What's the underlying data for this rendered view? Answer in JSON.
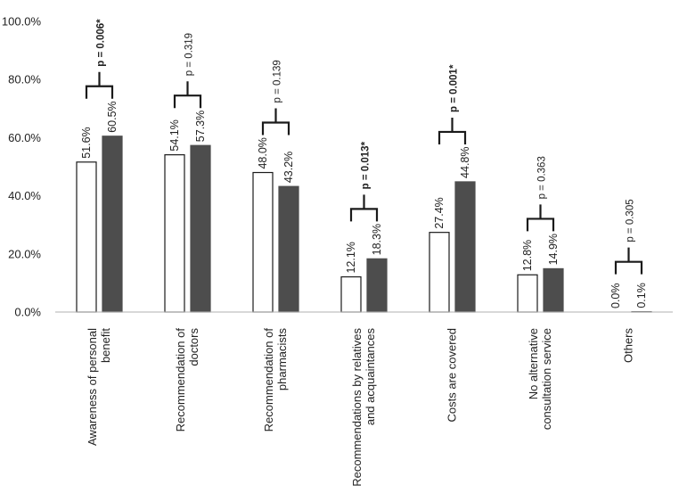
{
  "chart_data": {
    "type": "bar",
    "title": "",
    "xlabel": "",
    "ylabel": "",
    "ylim": [
      0,
      100
    ],
    "y_ticks": [
      0,
      20,
      40,
      60,
      80,
      100
    ],
    "y_tick_labels": [
      "0.0%",
      "20.0%",
      "40.0%",
      "60.0%",
      "80.0%",
      "100.0%"
    ],
    "grid": false,
    "legend": "none",
    "categories": [
      [
        "Awareness of personal",
        "benefit"
      ],
      [
        "Recommendation of",
        "doctors"
      ],
      [
        "Recommendation of",
        "pharmacists"
      ],
      [
        "Recommendations by relatives",
        "and acquaintances"
      ],
      [
        "Costs are covered"
      ],
      [
        "No alternative",
        "consultation service"
      ],
      [
        "Others"
      ]
    ],
    "series": [
      {
        "values": [
          51.6,
          54.1,
          48.0,
          12.1,
          27.4,
          12.8,
          0.0
        ],
        "labels": [
          "51.6%",
          "54.1%",
          "48.0%",
          "12.1%",
          "27.4%",
          "12.8%",
          "0.0%"
        ],
        "color": "#ffffff",
        "stroke": "#1a1a1a"
      },
      {
        "values": [
          60.5,
          57.3,
          43.2,
          18.3,
          44.8,
          14.9,
          0.1
        ],
        "labels": [
          "60.5%",
          "57.3%",
          "43.2%",
          "18.3%",
          "44.8%",
          "14.9%",
          "0.1%"
        ],
        "color": "#4d4d4d",
        "stroke": "#4d4d4d"
      }
    ],
    "annotations": [
      {
        "text": "p = 0.006*",
        "significant": true
      },
      {
        "text": "p = 0.319",
        "significant": false
      },
      {
        "text": "p = 0.139",
        "significant": false
      },
      {
        "text": "p = 0.013*",
        "significant": true
      },
      {
        "text": "p = 0.001*",
        "significant": true
      },
      {
        "text": "p = 0.363",
        "significant": false
      },
      {
        "text": "p = 0.305",
        "significant": false
      }
    ]
  }
}
